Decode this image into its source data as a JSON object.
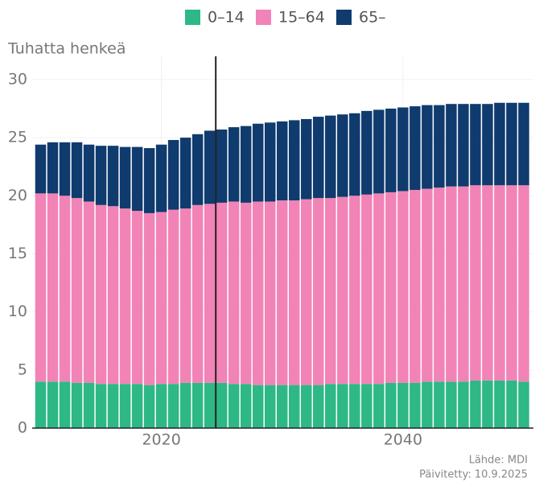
{
  "chart_data": {
    "type": "stacked_bar",
    "y_label": "Tuhatta henkeä",
    "x": [
      2010,
      2011,
      2012,
      2013,
      2014,
      2015,
      2016,
      2017,
      2018,
      2019,
      2020,
      2021,
      2022,
      2023,
      2024,
      2025,
      2026,
      2027,
      2028,
      2029,
      2030,
      2031,
      2032,
      2033,
      2034,
      2035,
      2036,
      2037,
      2038,
      2039,
      2040,
      2041,
      2042,
      2043,
      2044,
      2045,
      2046,
      2047,
      2048,
      2049,
      2050
    ],
    "series": [
      {
        "name": "0–14",
        "color": "#2db886",
        "values": [
          4.0,
          4.0,
          4.0,
          3.9,
          3.9,
          3.8,
          3.8,
          3.8,
          3.8,
          3.7,
          3.8,
          3.8,
          3.9,
          3.9,
          3.9,
          3.9,
          3.8,
          3.8,
          3.7,
          3.7,
          3.7,
          3.7,
          3.7,
          3.7,
          3.8,
          3.8,
          3.8,
          3.8,
          3.8,
          3.9,
          3.9,
          3.9,
          4.0,
          4.0,
          4.0,
          4.0,
          4.1,
          4.1,
          4.1,
          4.1,
          4.0
        ]
      },
      {
        "name": "15–64",
        "color": "#f283b6",
        "values": [
          16.2,
          16.2,
          16.0,
          15.9,
          15.6,
          15.4,
          15.3,
          15.1,
          14.9,
          14.8,
          14.8,
          15.0,
          15.0,
          15.3,
          15.4,
          15.5,
          15.7,
          15.6,
          15.8,
          15.8,
          15.9,
          15.9,
          16.0,
          16.1,
          16.0,
          16.1,
          16.2,
          16.3,
          16.4,
          16.4,
          16.5,
          16.6,
          16.6,
          16.7,
          16.8,
          16.8,
          16.8,
          16.8,
          16.8,
          16.8,
          16.9
        ]
      },
      {
        "name": "65–",
        "color": "#0f3b6e",
        "values": [
          4.2,
          4.4,
          4.6,
          4.8,
          4.9,
          5.1,
          5.2,
          5.3,
          5.5,
          5.6,
          5.8,
          6.0,
          6.1,
          6.1,
          6.3,
          6.3,
          6.4,
          6.6,
          6.7,
          6.8,
          6.8,
          6.9,
          6.9,
          7.0,
          7.1,
          7.1,
          7.1,
          7.2,
          7.2,
          7.2,
          7.2,
          7.2,
          7.2,
          7.1,
          7.1,
          7.1,
          7.0,
          7.0,
          7.1,
          7.1,
          7.1
        ]
      }
    ],
    "xlim": [
      2009.3,
      2050.8
    ],
    "xticks": [
      2020,
      2040
    ],
    "ylim": [
      0,
      32
    ],
    "yticks": [
      0,
      5,
      10,
      15,
      20,
      25,
      30
    ],
    "reference_line_x": 2024.5,
    "grid": true,
    "legend": "top",
    "source": "Lähde: MDI",
    "updated": "Päivitetty: 10.9.2025"
  }
}
